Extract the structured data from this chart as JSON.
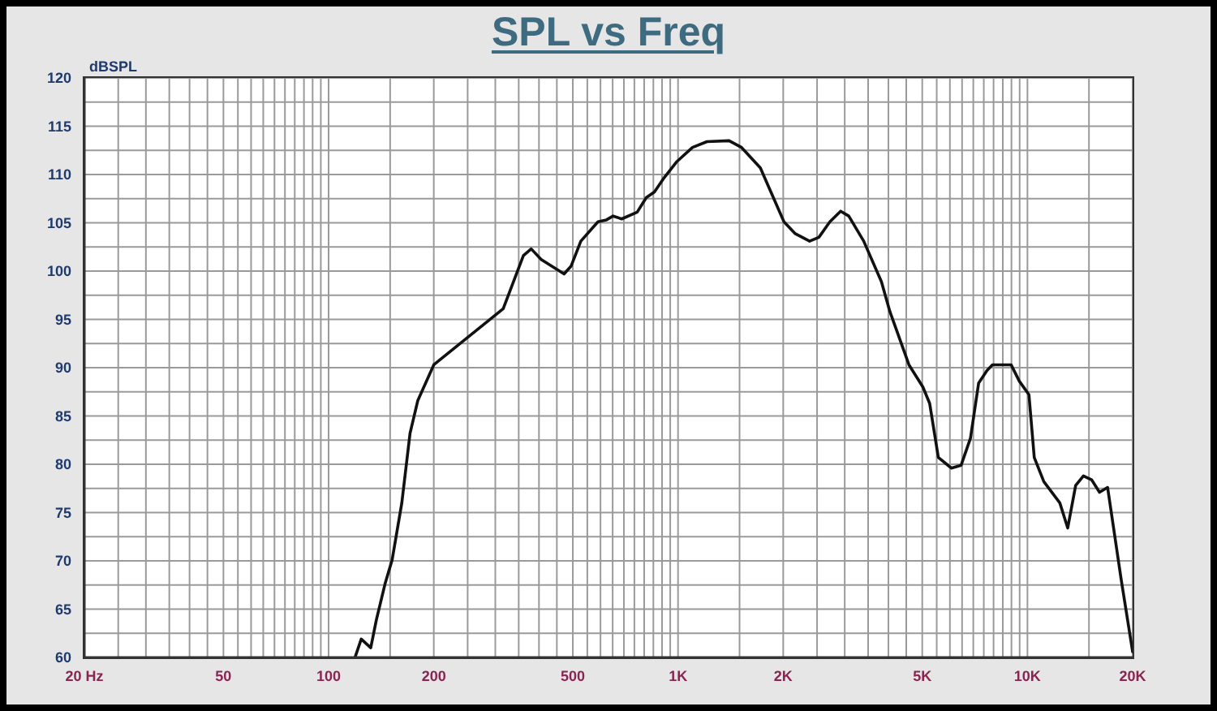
{
  "chart_data": {
    "type": "line",
    "title": "SPL vs Freq",
    "ylabel": "dBSPL",
    "log": "x",
    "x": [
      119,
      124,
      132,
      137,
      145,
      152,
      162,
      171,
      180,
      200,
      316,
      361,
      380,
      406,
      472,
      494,
      527,
      590,
      624,
      652,
      690,
      764,
      811,
      856,
      914,
      990,
      1100,
      1210,
      1400,
      1520,
      1720,
      2010,
      2160,
      2380,
      2530,
      2720,
      2920,
      3080,
      3400,
      3820,
      4040,
      4580,
      5020,
      5250,
      5560,
      6060,
      6460,
      6870,
      7250,
      7660,
      7940,
      8980,
      9480,
      10100,
      10460,
      11140,
      12380,
      13040,
      13740,
      14460,
      15260,
      16080,
      16960,
      18540,
      20000
    ],
    "series": [
      {
        "color": "#111111",
        "values": [
          60.0,
          61.9,
          61.0,
          63.9,
          67.6,
          70.1,
          76.0,
          83.2,
          86.6,
          90.3,
          96.1,
          101.6,
          102.3,
          101.2,
          99.7,
          100.5,
          103.1,
          105.1,
          105.3,
          105.7,
          105.4,
          106.1,
          107.6,
          108.2,
          109.7,
          111.3,
          112.8,
          113.4,
          113.5,
          112.8,
          110.7,
          105.1,
          103.9,
          103.1,
          103.5,
          105.1,
          106.2,
          105.7,
          103.1,
          98.9,
          95.8,
          90.3,
          88.0,
          86.3,
          80.7,
          79.6,
          79.9,
          82.7,
          88.4,
          89.7,
          90.3,
          90.3,
          88.6,
          87.2,
          80.7,
          78.2,
          76.0,
          73.4,
          77.8,
          78.8,
          78.4,
          77.1,
          77.6,
          68.1,
          60.6
        ]
      }
    ],
    "xlim": [
      20,
      20000
    ],
    "ylim": [
      60,
      120
    ],
    "xticks": [
      {
        "value": 20,
        "label": "20 Hz"
      },
      {
        "value": 25,
        "label": null
      },
      {
        "value": 30,
        "label": null
      },
      {
        "value": 35,
        "label": null
      },
      {
        "value": 40,
        "label": null
      },
      {
        "value": 45,
        "label": null
      },
      50,
      {
        "value": 55,
        "label": null
      },
      {
        "value": 60,
        "label": null
      },
      {
        "value": 65,
        "label": null
      },
      {
        "value": 70,
        "label": null
      },
      {
        "value": 75,
        "label": null
      },
      {
        "value": 80,
        "label": null
      },
      {
        "value": 85,
        "label": null
      },
      {
        "value": 90,
        "label": null
      },
      {
        "value": 95,
        "label": null
      },
      100,
      {
        "value": 150,
        "label": null
      },
      200,
      {
        "value": 250,
        "label": null
      },
      {
        "value": 300,
        "label": null
      },
      {
        "value": 350,
        "label": null
      },
      {
        "value": 400,
        "label": null
      },
      {
        "value": 450,
        "label": null
      },
      500,
      {
        "value": 550,
        "label": null
      },
      {
        "value": 600,
        "label": null
      },
      {
        "value": 650,
        "label": null
      },
      {
        "value": 700,
        "label": null
      },
      {
        "value": 750,
        "label": null
      },
      {
        "value": 800,
        "label": null
      },
      {
        "value": 850,
        "label": null
      },
      {
        "value": 900,
        "label": null
      },
      {
        "value": 950,
        "label": null
      },
      {
        "value": 1000,
        "label": "1K"
      },
      {
        "value": 1500,
        "label": null
      },
      {
        "value": 2000,
        "label": "2K"
      },
      {
        "value": 2500,
        "label": null
      },
      {
        "value": 3000,
        "label": null
      },
      {
        "value": 3500,
        "label": null
      },
      {
        "value": 4000,
        "label": null
      },
      {
        "value": 4500,
        "label": null
      },
      {
        "value": 5000,
        "label": "5K"
      },
      {
        "value": 5500,
        "label": null
      },
      {
        "value": 6000,
        "label": null
      },
      {
        "value": 6500,
        "label": null
      },
      {
        "value": 7000,
        "label": null
      },
      {
        "value": 7500,
        "label": null
      },
      {
        "value": 8000,
        "label": null
      },
      {
        "value": 8500,
        "label": null
      },
      {
        "value": 9000,
        "label": null
      },
      {
        "value": 9500,
        "label": null
      },
      {
        "value": 10000,
        "label": "10K"
      },
      {
        "value": 15000,
        "label": null
      },
      {
        "value": 20000,
        "label": "20K"
      }
    ],
    "yticks": [
      60,
      {
        "value": 62.5,
        "label": null
      },
      65,
      {
        "value": 67.5,
        "label": null
      },
      70,
      {
        "value": 72.5,
        "label": null
      },
      75,
      {
        "value": 77.5,
        "label": null
      },
      80,
      {
        "value": 82.5,
        "label": null
      },
      85,
      {
        "value": 87.5,
        "label": null
      },
      90,
      {
        "value": 92.5,
        "label": null
      },
      95,
      {
        "value": 97.5,
        "label": null
      },
      100,
      {
        "value": 102.5,
        "label": null
      },
      105,
      {
        "value": 107.5,
        "label": null
      },
      110,
      {
        "value": 112.5,
        "label": null
      },
      115,
      {
        "value": 117.5,
        "label": null
      },
      120
    ],
    "grid": true,
    "marker": "none",
    "line_style": "solid"
  }
}
